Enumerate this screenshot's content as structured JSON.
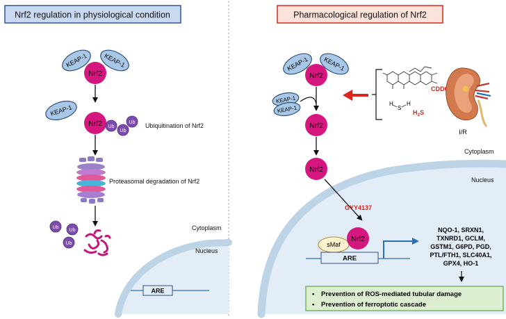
{
  "left_panel": {
    "title": "Nrf2 regulation in physiological condition",
    "keap1": "KEAP-1",
    "nrf2": "Nrf2",
    "ub": "Ub",
    "ubiquitination_label": "Ubiquitination of Nrf2",
    "proteasome_label": "Proteasomal degradation of Nrf2",
    "cytoplasm": "Cytoplasm",
    "nucleus": "Nucleus",
    "are": "ARE"
  },
  "right_panel": {
    "title": "Pharmacological regulation of Nrf2",
    "keap1": "KEAP-1",
    "nrf2": "Nrf2",
    "cddo": "CDDO",
    "h2s": "H",
    "h2s_sub": "2",
    "h2s_tail": "S",
    "h_atom": "H",
    "s_atom": "S",
    "kidney_label": "I/R",
    "cytoplasm": "Cytoplasm",
    "nucleus": "Nucleus",
    "gyy": "GYY4137",
    "smaf": "sMaf",
    "are": "ARE",
    "genes": [
      "NQO-1, SRXN1,",
      "TXNRD1, GCLM,",
      "GSTM1, G6PD, PGD,",
      "PTL/FTH1, SLC40A1,",
      "GPX4, HO-1"
    ],
    "outcomes": [
      "Prevention of ROS-mediated tubular damage",
      "Prevention of ferroptotic cascade"
    ],
    "bullet": "•"
  },
  "colors": {
    "nrf2": "#d6167f",
    "keap1_fill": "#a9c8e8",
    "keap1_stroke": "#2d4f7c",
    "ub_fill": "#7d4cae",
    "nucleus_fill": "#e2edf8",
    "membrane": "#bdd3e6",
    "red": "#d9261c",
    "blue_arrow": "#2a6fb8",
    "outcome_fill": "#ddefd0",
    "outcome_stroke": "#6aa84f",
    "left_title_fill": "#c9daf0",
    "left_title_stroke": "#2f5597",
    "right_title_fill": "#fbe3dc",
    "right_title_stroke": "#d9261c",
    "smaf_fill": "#fff2cc"
  }
}
